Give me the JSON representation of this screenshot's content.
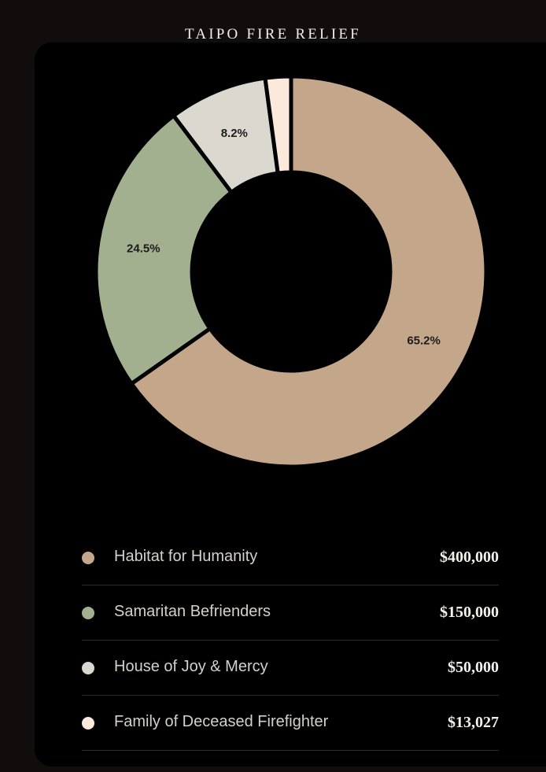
{
  "chart_data": {
    "type": "pie",
    "title": "TAIPO FIRE RELIEF",
    "slices": [
      {
        "label": "Habitat for Humanity",
        "value": 400000,
        "display_value": "$400,000",
        "percent_label": "65.2%",
        "color": "#c4a78a"
      },
      {
        "label": "Samaritan Befrienders",
        "value": 150000,
        "display_value": "$150,000",
        "percent_label": "24.5%",
        "color": "#a3b08f"
      },
      {
        "label": "House of Joy & Mercy",
        "value": 50000,
        "display_value": "$50,000",
        "percent_label": "8.2%",
        "color": "#dbd8cf"
      },
      {
        "label": "Family of Deceased Firefighter",
        "value": 13027,
        "display_value": "$13,027",
        "percent_label": "",
        "color": "#fbe9db"
      }
    ]
  }
}
